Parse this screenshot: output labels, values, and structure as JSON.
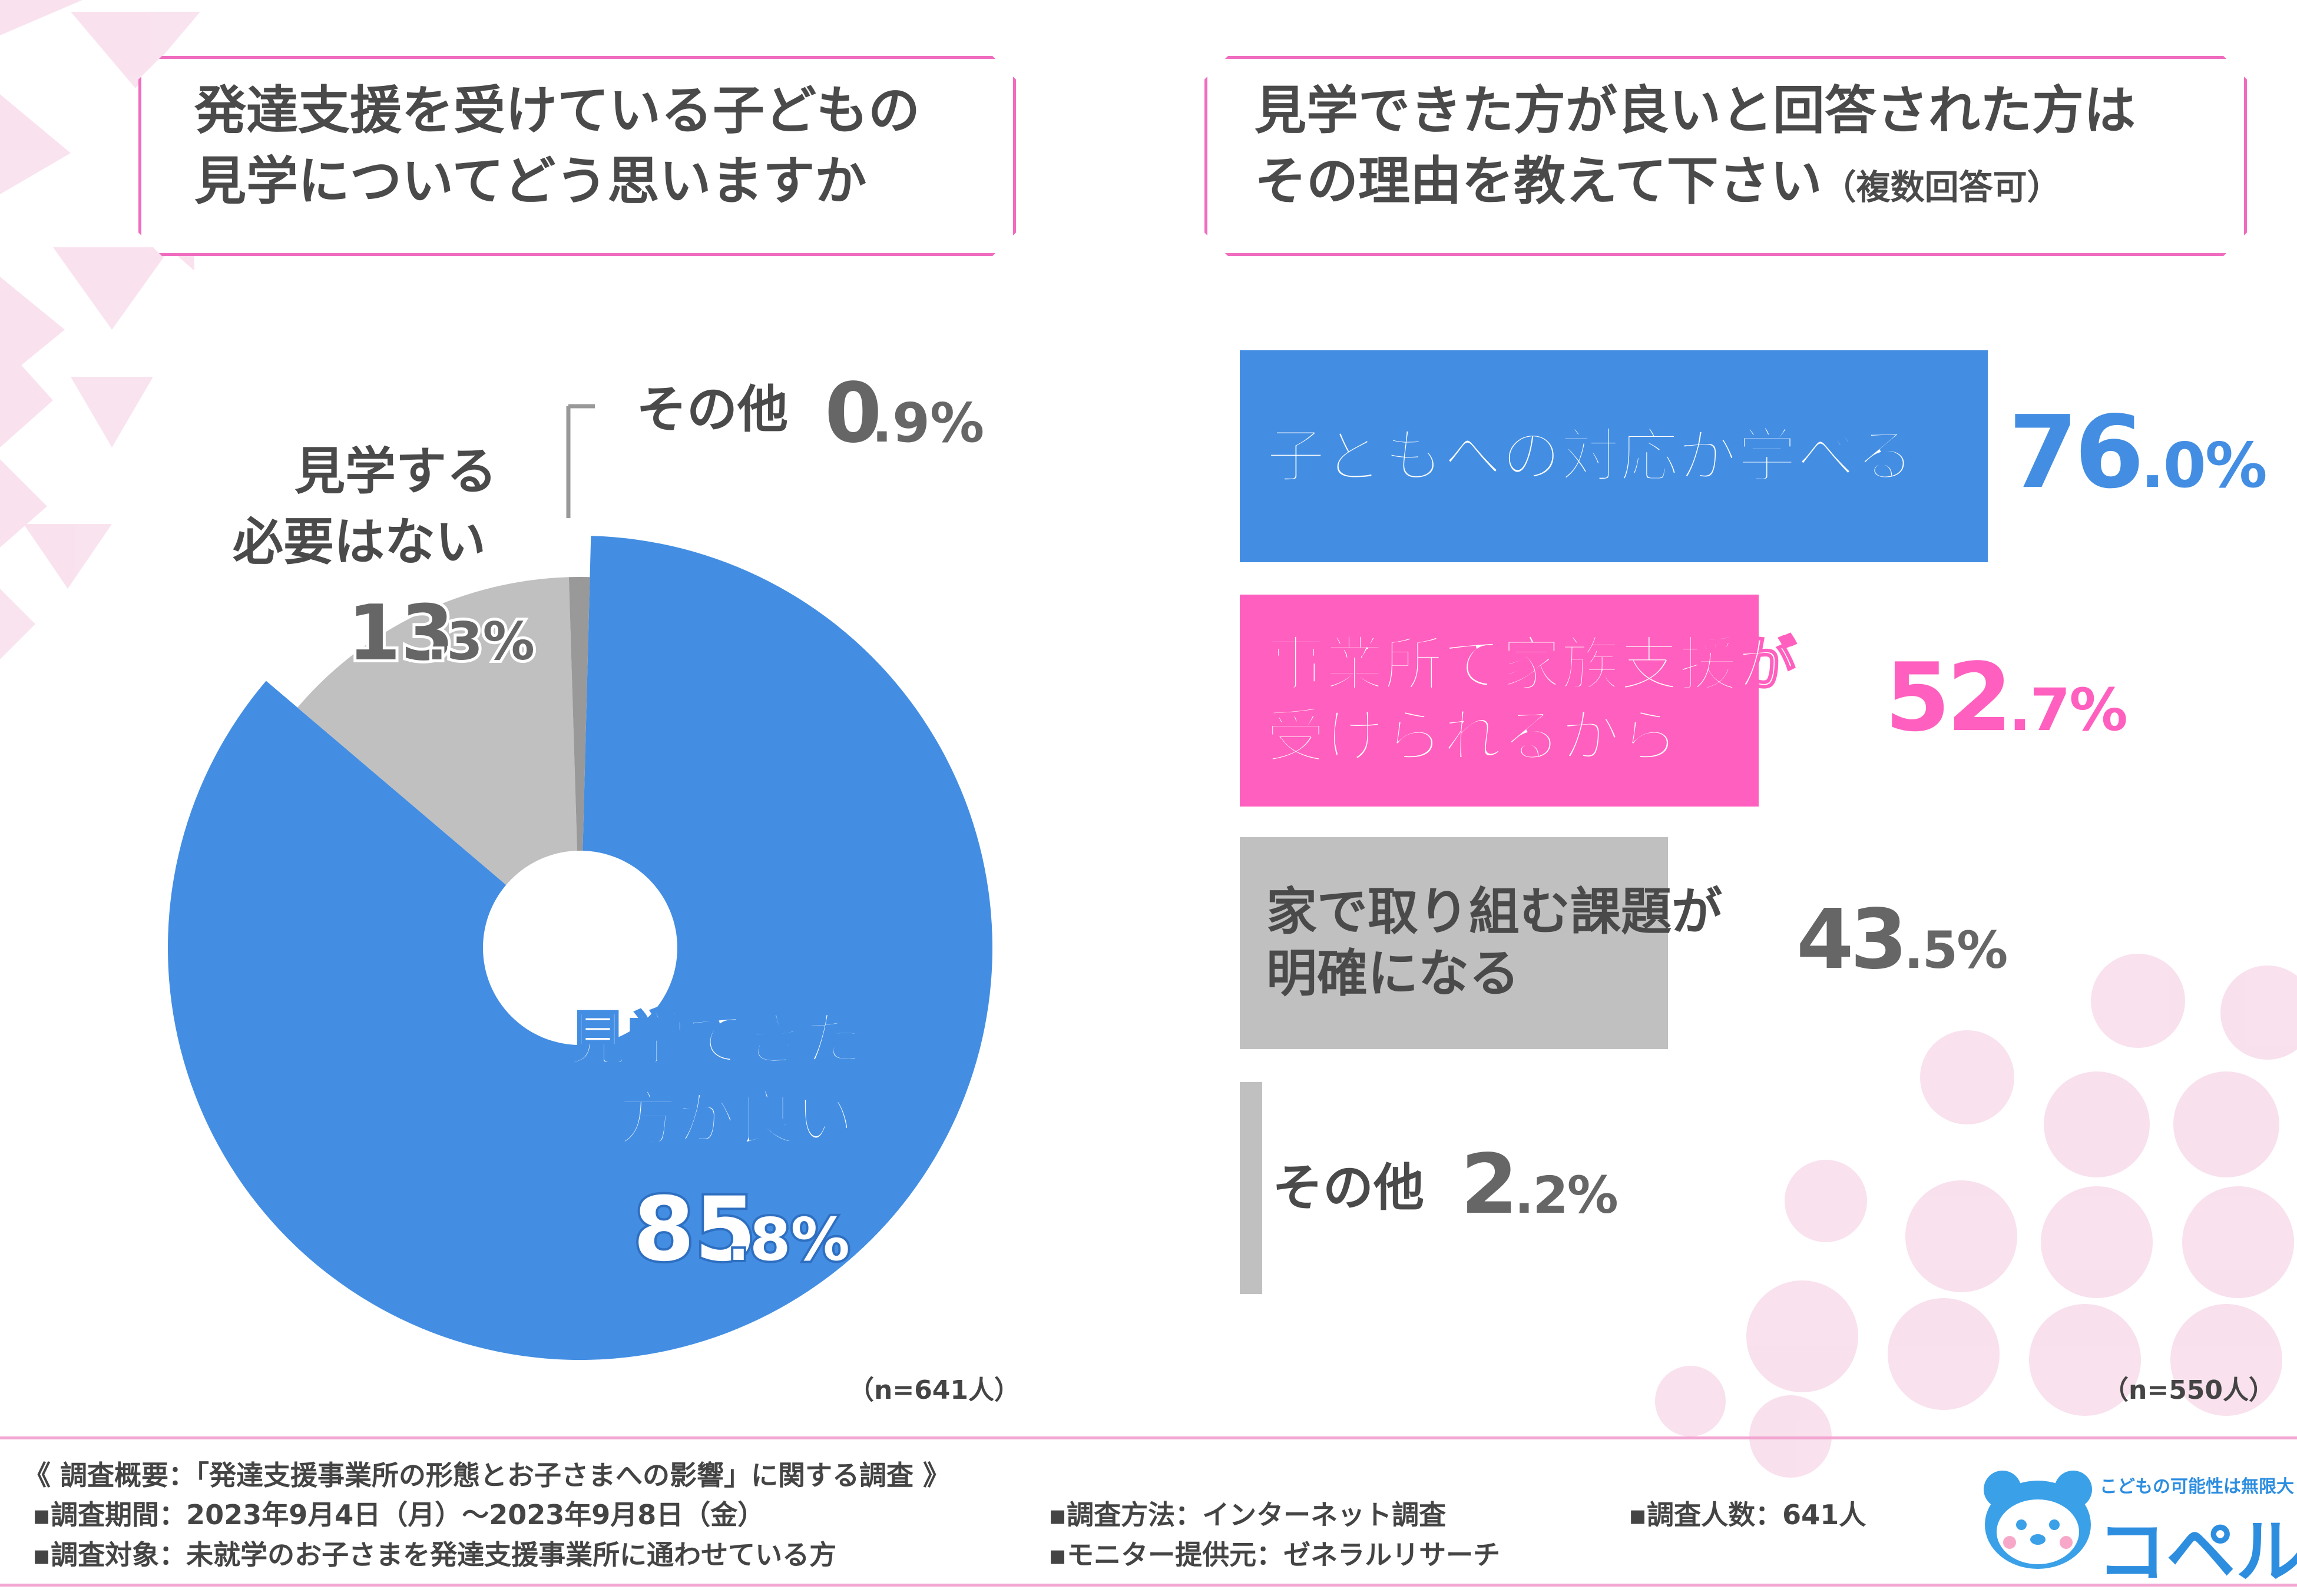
{
  "colors": {
    "blue": "#438ee3",
    "pink": "#ff5fbe",
    "gray": "#c0c0c0",
    "darkgray": "#999999",
    "text": "#4a4a4a",
    "border": "#f06cbe"
  },
  "left": {
    "question_line1": "発達支援を受けている子どもの",
    "question_line2": "見学についてどう思いますか",
    "n": "（n=641人）"
  },
  "right": {
    "question_line1": "見学できた方が良いと回答された方は",
    "question_line2": "その理由を教えて下さい",
    "question_note": "（複数回答可）",
    "n": "（n=550人）"
  },
  "pie": {
    "slices": [
      {
        "line1": "見学できた",
        "line2": "方が良い",
        "value_int": "85",
        "value_dec": ".8%"
      },
      {
        "line1": "見学する",
        "line2": "必要はない",
        "value_int": "13",
        "value_dec": ".3%"
      },
      {
        "line1": "その他",
        "line2": "",
        "value_int": "0",
        "value_dec": ".9%"
      }
    ]
  },
  "bars": [
    {
      "line1": "子どもへの対応が学べる",
      "line2": "",
      "value_int": "76",
      "value_dec": ".0%"
    },
    {
      "line1": "事業所で家族支援が",
      "line2": "受けられるから",
      "value_int": "52",
      "value_dec": ".7%"
    },
    {
      "line1": "家で取り組む課題が",
      "line2": "明確になる",
      "value_int": "43",
      "value_dec": ".5%"
    },
    {
      "line1": "その他",
      "line2": "",
      "value_int": "2",
      "value_dec": ".2%"
    }
  ],
  "chart_data": [
    {
      "type": "pie",
      "title": "発達支援を受けている子どもの見学についてどう思いますか",
      "categories": [
        "見学できた方が良い",
        "見学する必要はない",
        "その他"
      ],
      "values": [
        85.8,
        13.3,
        0.9
      ],
      "colors": [
        "#438ee3",
        "#c0c0c0",
        "#999999"
      ]
    },
    {
      "type": "bar",
      "title": "見学できた方が良いと回答された方はその理由を教えて下さい（複数回答可）",
      "categories": [
        "子どもへの対応が学べる",
        "事業所で家族支援が受けられるから",
        "家で取り組む課題が明確になる",
        "その他"
      ],
      "values": [
        76.0,
        52.7,
        43.5,
        2.2
      ],
      "colors": [
        "#438ee3",
        "#ff5fbe",
        "#c0c0c0",
        "#c0c0c0"
      ]
    }
  ],
  "footer": {
    "survey_title": "《 調査概要：「発達支援事業所の形態とお子さまへの影響」に関する調査 》",
    "period": "▪調査期間：2023年9月4日（月）～2023年9月8日（金）",
    "method": "▪調査方法：インターネット調査",
    "count": "▪調査人数：641人",
    "target": "▪調査対象：未就学のお子さまを発達支援事業所に通わせている方",
    "monitor": "▪モニター提供元：ゼネラルリサーチ"
  },
  "logo": {
    "tagline": "こどもの可能性は無限大",
    "name": "コペル"
  }
}
